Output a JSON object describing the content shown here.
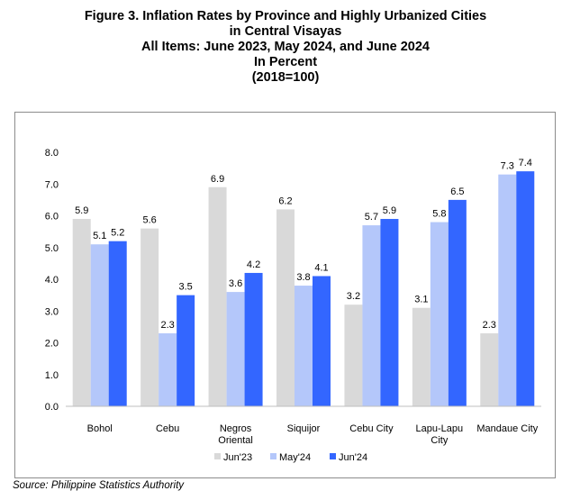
{
  "title_lines": [
    "Figure 3. Inflation Rates by Province and Highly Urbanized Cities",
    "in Central Visayas",
    "All Items: June 2023, May 2024, and June 2024",
    "In Percent",
    "(2018=100)"
  ],
  "source": "Source: Philippine Statistics Authority",
  "chart_data": {
    "type": "bar",
    "categories": [
      "Bohol",
      "Cebu",
      "Negros Oriental",
      "Siquijor",
      "Cebu City",
      "Lapu-Lapu City",
      "Mandaue City"
    ],
    "category_label_lines": [
      [
        "Bohol"
      ],
      [
        "Cebu"
      ],
      [
        "Negros",
        "Oriental"
      ],
      [
        "Siquijor"
      ],
      [
        "Cebu City"
      ],
      [
        "Lapu-Lapu",
        "City"
      ],
      [
        "Mandaue City"
      ]
    ],
    "series": [
      {
        "name": "Jun'23",
        "color": "#d9d9d9",
        "values": [
          5.9,
          5.6,
          6.9,
          6.2,
          3.2,
          3.1,
          2.3
        ]
      },
      {
        "name": "May'24",
        "color": "#b4c7fa",
        "values": [
          5.1,
          2.3,
          3.6,
          3.8,
          5.7,
          5.8,
          7.3
        ]
      },
      {
        "name": "Jun'24",
        "color": "#3366ff",
        "values": [
          5.2,
          3.5,
          4.2,
          4.1,
          5.9,
          6.5,
          7.4
        ]
      }
    ],
    "y_ticks": [
      "0.0",
      "1.0",
      "2.0",
      "3.0",
      "4.0",
      "5.0",
      "6.0",
      "7.0",
      "8.0"
    ],
    "ylim": [
      0,
      8
    ],
    "grid": false,
    "legend_position": "bottom-center",
    "xlabel": "",
    "ylabel": ""
  }
}
